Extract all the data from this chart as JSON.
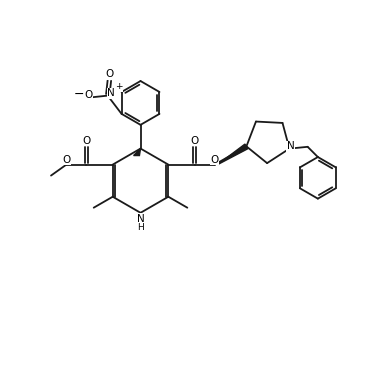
{
  "background": "#ffffff",
  "line_color": "#1a1a1a",
  "line_width": 1.3,
  "figsize": [
    3.65,
    3.65
  ],
  "dpi": 100,
  "xlim": [
    0,
    10
  ],
  "ylim": [
    0,
    10
  ]
}
